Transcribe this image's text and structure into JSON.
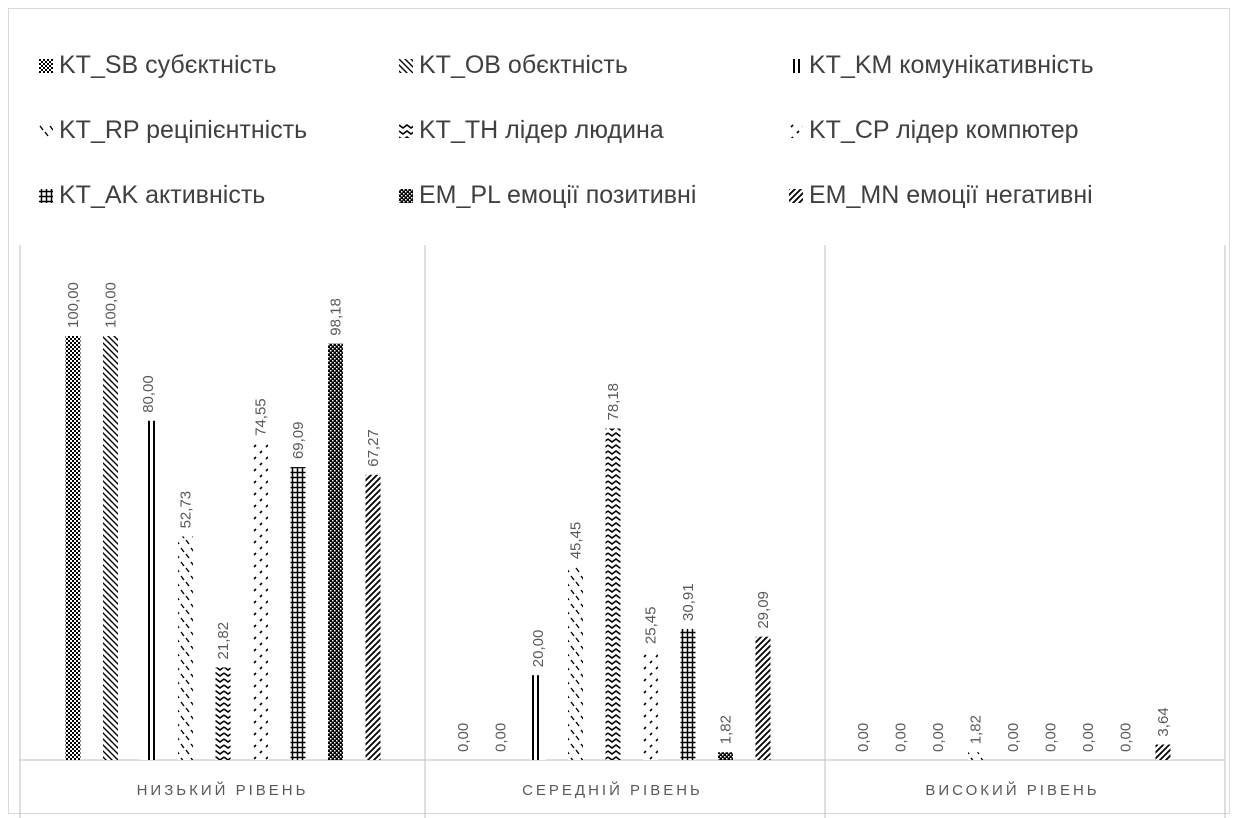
{
  "chart_data": {
    "type": "bar",
    "title": "",
    "xlabel": "",
    "ylabel": "",
    "ylim": [
      0,
      100
    ],
    "grid": false,
    "legend_position": "top",
    "categories": [
      "НИЗЬКИЙ РІВЕНЬ",
      "СЕРЕДНІЙ РІВЕНЬ",
      "ВИСОКИЙ РІВЕНЬ"
    ],
    "value_labels": [
      [
        "100,00",
        "100,00",
        "80,00",
        "52,73",
        "21,82",
        "74,55",
        "69,09",
        "98,18",
        "67,27"
      ],
      [
        "0,00",
        "0,00",
        "20,00",
        "45,45",
        "78,18",
        "25,45",
        "30,91",
        "1,82",
        "29,09"
      ],
      [
        "0,00",
        "0,00",
        "0,00",
        "1,82",
        "0,00",
        "0,00",
        "0,00",
        "0,00",
        "3,64"
      ]
    ],
    "series": [
      {
        "name": "KT_SB субєктність",
        "values": [
          100.0,
          0.0,
          0.0
        ],
        "pattern": "checker"
      },
      {
        "name": "KT_OB обєктність",
        "values": [
          100.0,
          0.0,
          0.0
        ],
        "pattern": "diag-down"
      },
      {
        "name": "KT_KM комунікативність",
        "values": [
          80.0,
          20.0,
          0.0
        ],
        "pattern": "vlines"
      },
      {
        "name": "KT_RP реціпієнтність",
        "values": [
          52.73,
          45.45,
          1.82
        ],
        "pattern": "dashes"
      },
      {
        "name": "KT_TH лідер людина",
        "values": [
          21.82,
          78.18,
          0.0
        ],
        "pattern": "zigzag"
      },
      {
        "name": "KT_CP лідер компютер",
        "values": [
          74.55,
          25.45,
          0.0
        ],
        "pattern": "dots"
      },
      {
        "name": "KT_AK активність",
        "values": [
          69.09,
          30.91,
          0.0
        ],
        "pattern": "grid"
      },
      {
        "name": "EM_PL емоції позитивні",
        "values": [
          98.18,
          1.82,
          0.0
        ],
        "pattern": "dense-checker"
      },
      {
        "name": "EM_MN емоції негативні",
        "values": [
          67.27,
          29.09,
          3.64
        ],
        "pattern": "diag-up"
      }
    ],
    "colors": {
      "bar": "#000000",
      "text": "#404040",
      "axis": "#bfbfbf",
      "label": "#595959"
    }
  }
}
